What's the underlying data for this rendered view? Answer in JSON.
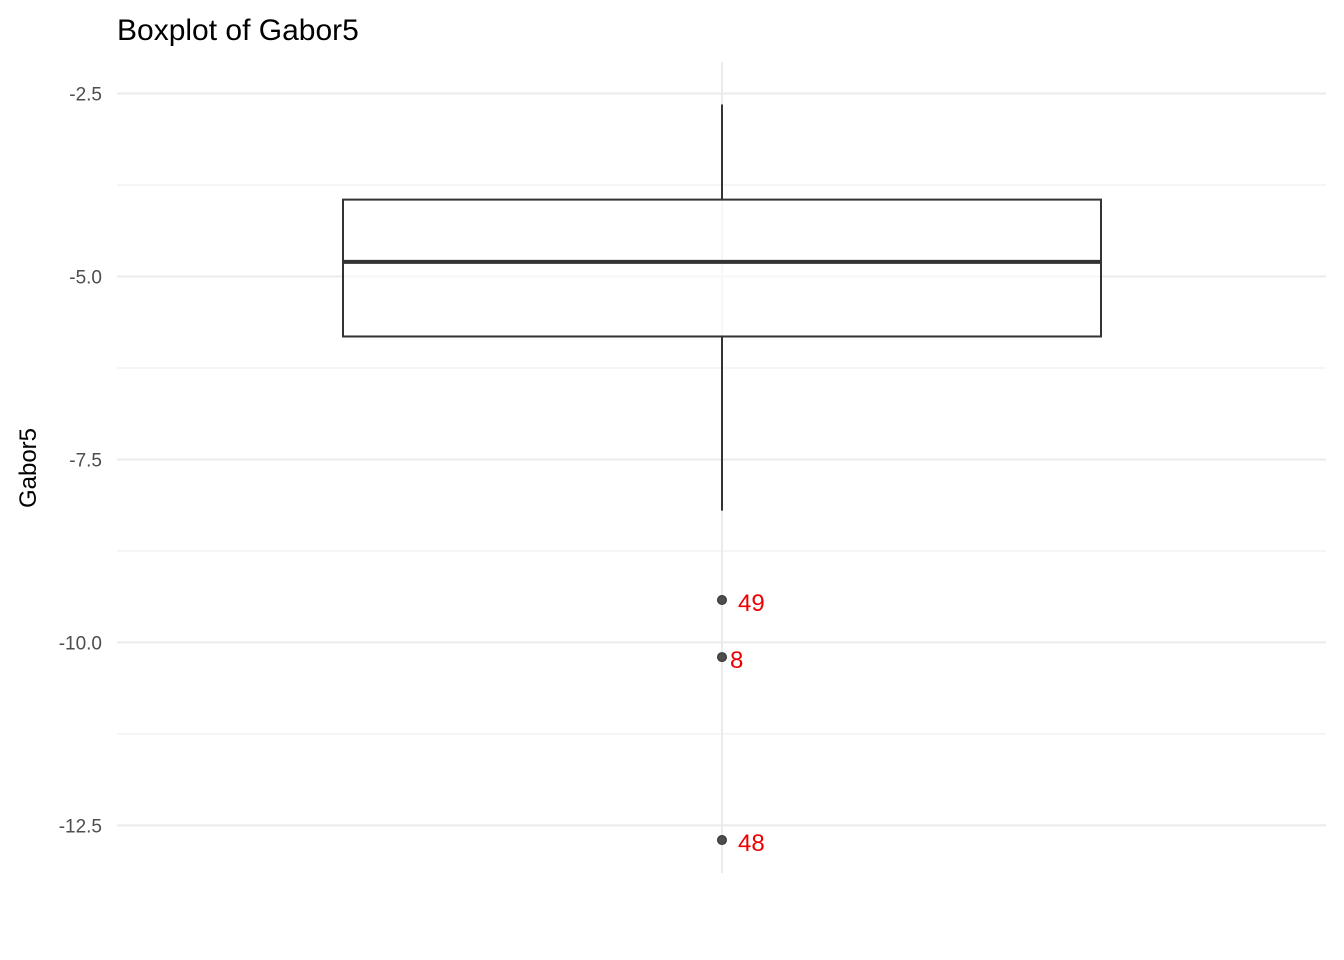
{
  "chart_data": {
    "type": "boxplot",
    "title": "Boxplot of Gabor5",
    "ylabel": "Gabor5",
    "xlabel": "",
    "ylim": [
      -13.15,
      -2.07
    ],
    "y_ticks": [
      {
        "value": -2.5,
        "label": "-2.5"
      },
      {
        "value": -5.0,
        "label": "-5.0"
      },
      {
        "value": -7.5,
        "label": "-7.5"
      },
      {
        "value": -10.0,
        "label": "-10.0"
      },
      {
        "value": -12.5,
        "label": "-12.5"
      }
    ],
    "y_minor_ticks": [
      -3.75,
      -6.25,
      -8.75,
      -11.25
    ],
    "grid": true,
    "box": {
      "whisker_high": -2.65,
      "q3": -3.95,
      "median": -4.8,
      "q1": -5.82,
      "whisker_low": -8.2
    },
    "outliers": [
      {
        "id": "49",
        "value": -9.42
      },
      {
        "id": "8",
        "value": -10.2
      },
      {
        "id": "48",
        "value": -12.7
      }
    ],
    "colors": {
      "background": "#ffffff",
      "grid": "#ebebeb",
      "box_line": "#333333",
      "box_fill": "#ffffff",
      "point": "#4d4d4d",
      "outlier_label": "#ee0000",
      "tick_text": "#4d4d4d",
      "title_text": "#000000"
    }
  }
}
